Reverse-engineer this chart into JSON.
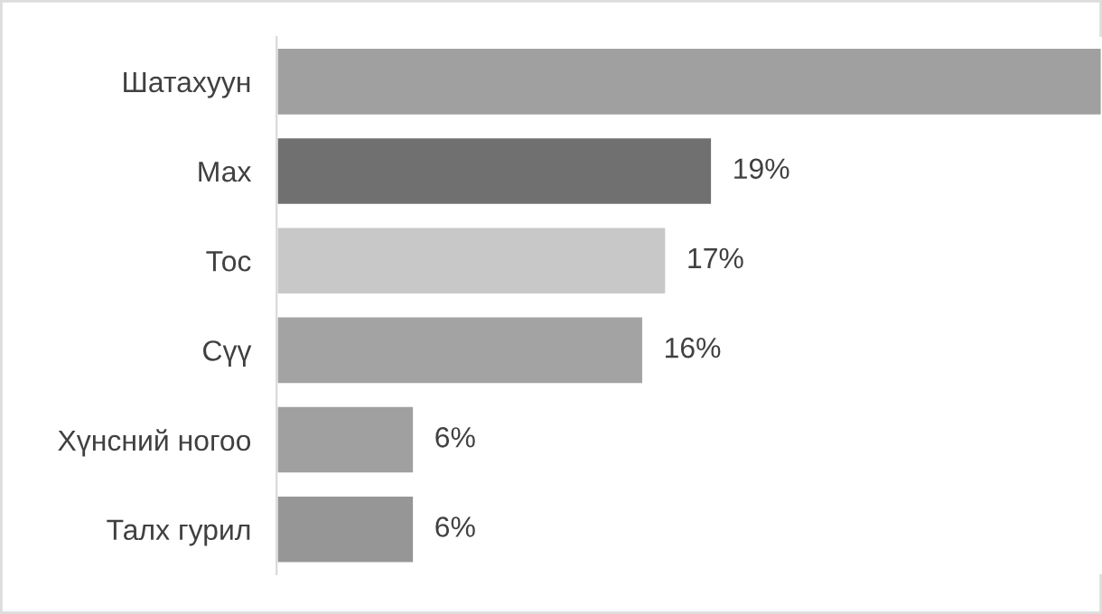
{
  "chart_data": {
    "type": "bar",
    "orientation": "horizontal",
    "categories": [
      "Шатахуун",
      "Мах",
      "Тос",
      "Сүү",
      "Хүнсний ногоо",
      "Талх гурил"
    ],
    "values": [
      36,
      19,
      17,
      16,
      6,
      6
    ],
    "value_labels": [
      null,
      "19%",
      "17%",
      "16%",
      "6%",
      "6%"
    ],
    "colors": [
      "#a0a0a0",
      "#707070",
      "#c8c8c8",
      "#a3a3a3",
      "#a0a0a0",
      "#969696"
    ],
    "grid": false,
    "legend": false
  }
}
